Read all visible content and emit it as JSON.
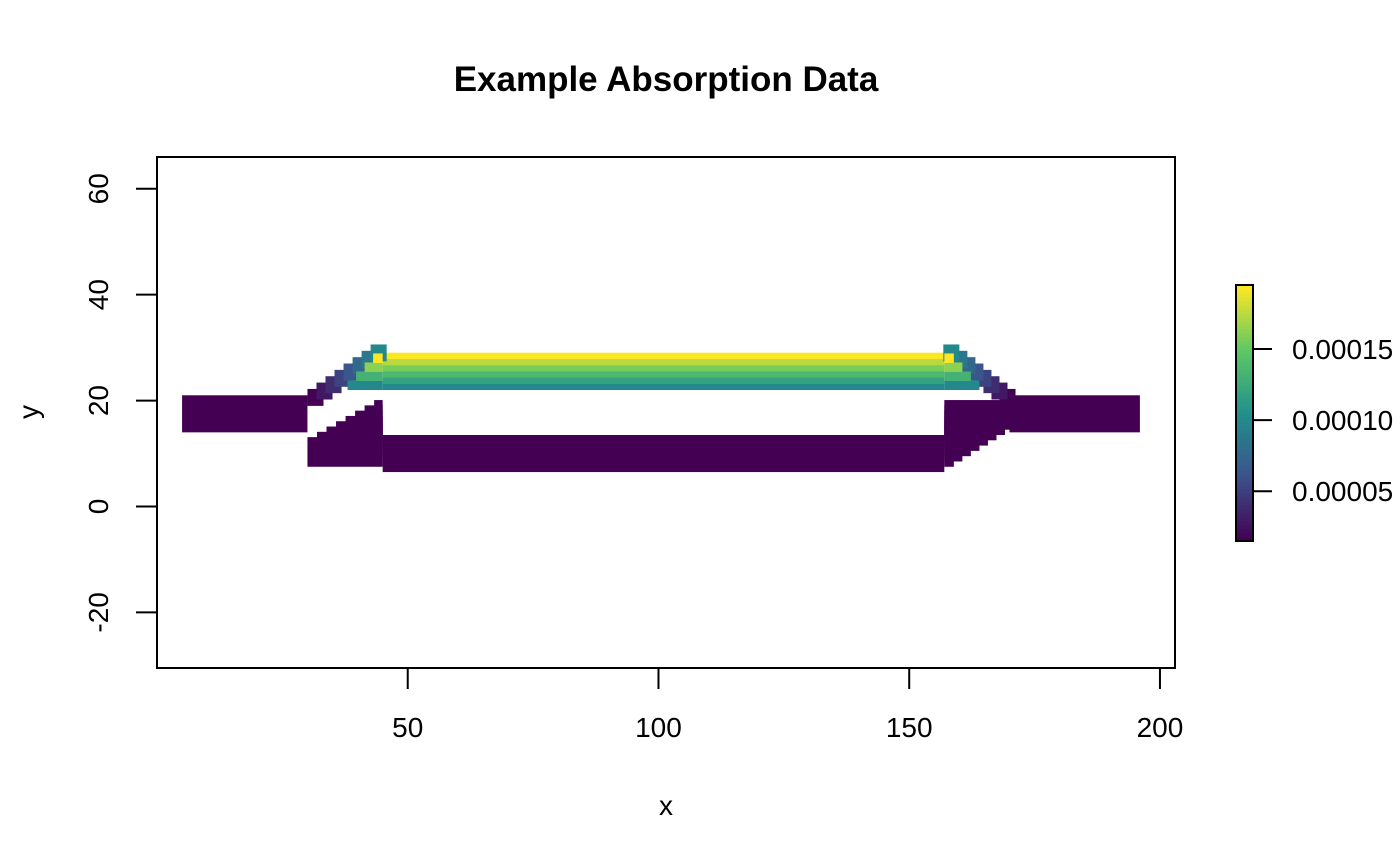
{
  "chart_data": {
    "type": "heatmap",
    "title": "Example Absorption Data",
    "xlabel": "x",
    "ylabel": "y",
    "xlim": [
      0,
      203
    ],
    "ylim": [
      -30.5,
      66
    ],
    "x_ticks": [
      50,
      100,
      150,
      200
    ],
    "x_tick_labels": [
      "50",
      "100",
      "150",
      "200"
    ],
    "y_ticks": [
      -20,
      0,
      20,
      40,
      60
    ],
    "y_tick_labels": [
      "-20",
      "0",
      "20",
      "40",
      "60"
    ],
    "grid": false,
    "legend_position": "right",
    "colorbar": {
      "min": 1.5e-05,
      "max": 0.000195,
      "ticks": [
        5e-05,
        0.0001,
        0.00015
      ],
      "tick_labels": [
        "0.00005",
        "0.00010",
        "0.00015"
      ],
      "palette": [
        "#440154",
        "#3b528b",
        "#21908c",
        "#5dc863",
        "#fde725"
      ]
    },
    "regions": [
      {
        "name": "input-waveguide",
        "x": [
          5,
          30
        ],
        "y": [
          14,
          21
        ],
        "value": 1.5e-05
      },
      {
        "name": "output-waveguide",
        "x": [
          170,
          196
        ],
        "y": [
          14,
          21
        ],
        "value": 1.5e-05
      },
      {
        "name": "lower-arm",
        "x": [
          45,
          157
        ],
        "y": [
          6.5,
          13.5
        ],
        "value": 1.5e-05
      },
      {
        "name": "upper-arm",
        "x": [
          45,
          157
        ],
        "y": [
          22,
          29
        ],
        "value_bottom": 0.0001,
        "value_top": 0.000195
      }
    ]
  }
}
